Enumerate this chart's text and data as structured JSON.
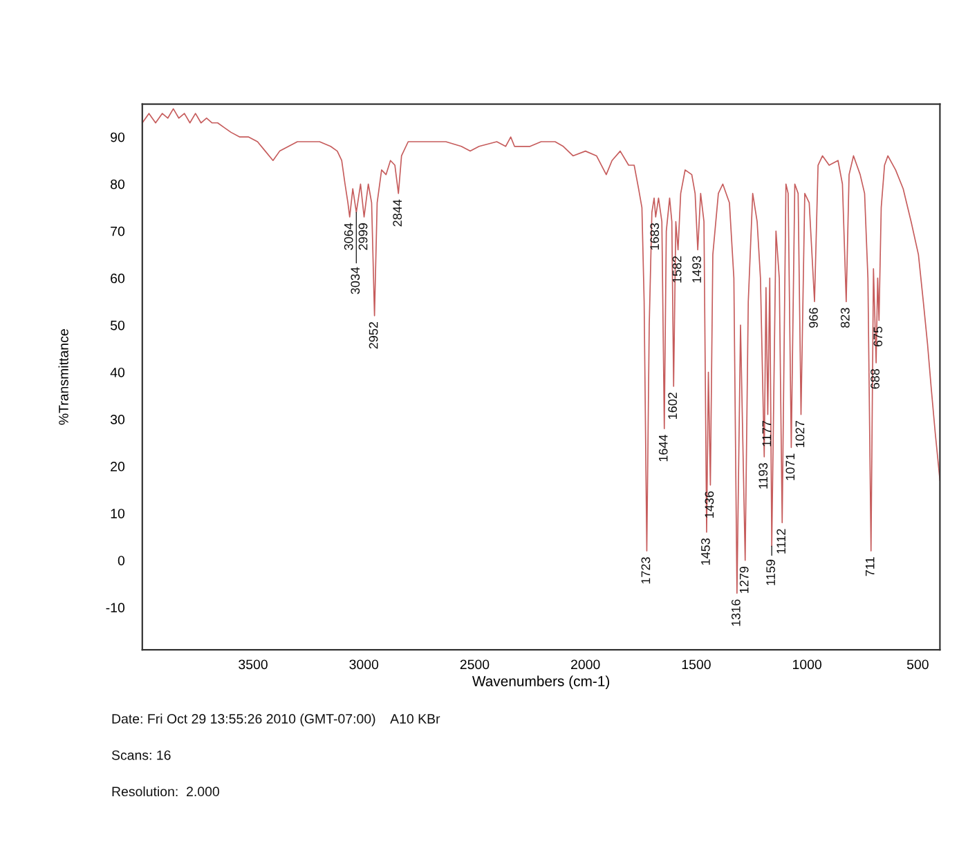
{
  "chart_data": {
    "type": "line",
    "xlabel": "Wavenumbers (cm-1)",
    "ylabel": "%Transmittance",
    "xlim": [
      4000,
      400
    ],
    "xticks": [
      3500,
      3000,
      2500,
      2000,
      1500,
      1000,
      500
    ],
    "ylim": [
      -19,
      97
    ],
    "yticks": [
      -10,
      0,
      10,
      20,
      30,
      40,
      50,
      60,
      70,
      80,
      90
    ],
    "x": [
      4000,
      3970,
      3940,
      3910,
      3885,
      3860,
      3835,
      3810,
      3785,
      3760,
      3735,
      3710,
      3685,
      3660,
      3630,
      3600,
      3560,
      3520,
      3480,
      3445,
      3410,
      3380,
      3340,
      3300,
      3250,
      3200,
      3150,
      3120,
      3100,
      3085,
      3072,
      3064,
      3050,
      3034,
      3015,
      2999,
      2980,
      2965,
      2952,
      2940,
      2920,
      2900,
      2880,
      2860,
      2844,
      2830,
      2800,
      2700,
      2630,
      2560,
      2520,
      2480,
      2400,
      2360,
      2337,
      2320,
      2250,
      2200,
      2137,
      2100,
      2056,
      2000,
      1950,
      1906,
      1880,
      1843,
      1805,
      1780,
      1760,
      1745,
      1735,
      1723,
      1712,
      1700,
      1690,
      1683,
      1670,
      1655,
      1644,
      1635,
      1620,
      1610,
      1602,
      1592,
      1582,
      1570,
      1550,
      1520,
      1505,
      1493,
      1480,
      1465,
      1453,
      1445,
      1436,
      1425,
      1400,
      1380,
      1350,
      1330,
      1316,
      1300,
      1279,
      1265,
      1245,
      1225,
      1210,
      1193,
      1185,
      1177,
      1168,
      1159,
      1140,
      1125,
      1112,
      1095,
      1085,
      1071,
      1055,
      1040,
      1027,
      1010,
      990,
      966,
      950,
      930,
      900,
      860,
      840,
      823,
      810,
      790,
      760,
      740,
      725,
      711,
      700,
      688,
      681,
      675,
      665,
      650,
      635,
      600,
      566,
      530,
      497,
      475,
      456,
      440,
      421,
      400
    ],
    "series": [
      {
        "color": "#c65c5c",
        "values": [
          93,
          95,
          93,
          95,
          94,
          96,
          94,
          95,
          93,
          95,
          93,
          94,
          93,
          93,
          92,
          91,
          90,
          90,
          89,
          87,
          85,
          87,
          88,
          89,
          89,
          89,
          88,
          87,
          85,
          80,
          76,
          73,
          79,
          74,
          80,
          73,
          80,
          76,
          52,
          76,
          83,
          82,
          85,
          84,
          78,
          86,
          89,
          89,
          89,
          88,
          87,
          88,
          89,
          88,
          90,
          88,
          88,
          89,
          89,
          88,
          86,
          87,
          86,
          82,
          85,
          87,
          84,
          84,
          79,
          75,
          55,
          2,
          50,
          74,
          77,
          73,
          77,
          72,
          28,
          70,
          77,
          72,
          37,
          72,
          66,
          78,
          83,
          82,
          78,
          66,
          78,
          72,
          6,
          40,
          16,
          65,
          78,
          80,
          76,
          60,
          -7,
          50,
          0,
          55,
          78,
          72,
          60,
          22,
          58,
          31,
          60,
          3,
          70,
          60,
          8,
          80,
          78,
          24,
          80,
          78,
          31,
          78,
          76,
          55,
          84,
          86,
          84,
          85,
          80,
          55,
          82,
          86,
          82,
          78,
          60,
          2,
          62,
          42,
          60,
          51,
          75,
          84,
          86,
          83,
          79,
          72,
          65,
          55,
          46,
          37,
          27,
          17
        ]
      }
    ],
    "annotations": [
      {
        "text": "3064",
        "x": 3064,
        "y": 73
      },
      {
        "text": "3034",
        "x": 3034,
        "y": 74
      },
      {
        "text": "2999",
        "x": 2999,
        "y": 73
      },
      {
        "text": "2952",
        "x": 2952,
        "y": 52
      },
      {
        "text": "2844",
        "x": 2844,
        "y": 78
      },
      {
        "text": "1723",
        "x": 1723,
        "y": 2
      },
      {
        "text": "1683",
        "x": 1683,
        "y": 73
      },
      {
        "text": "1644",
        "x": 1644,
        "y": 28
      },
      {
        "text": "1602",
        "x": 1602,
        "y": 37
      },
      {
        "text": "1582",
        "x": 1582,
        "y": 66
      },
      {
        "text": "1493",
        "x": 1493,
        "y": 66
      },
      {
        "text": "1453",
        "x": 1453,
        "y": 6
      },
      {
        "text": "1436",
        "x": 1436,
        "y": 16
      },
      {
        "text": "1316",
        "x": 1316,
        "y": -7
      },
      {
        "text": "1279",
        "x": 1279,
        "y": 0
      },
      {
        "text": "1193",
        "x": 1193,
        "y": 22
      },
      {
        "text": "1177",
        "x": 1177,
        "y": 31
      },
      {
        "text": "1159",
        "x": 1159,
        "y": 3
      },
      {
        "text": "1112",
        "x": 1112,
        "y": 8
      },
      {
        "text": "1071",
        "x": 1071,
        "y": 24
      },
      {
        "text": "1027",
        "x": 1027,
        "y": 31
      },
      {
        "text": "966",
        "x": 966,
        "y": 55
      },
      {
        "text": "823",
        "x": 823,
        "y": 55
      },
      {
        "text": "711",
        "x": 711,
        "y": 2
      },
      {
        "text": "688",
        "x": 688,
        "y": 42
      },
      {
        "text": "675",
        "x": 675,
        "y": 51
      },
      "Date: Fri Oct 29 13:55:26 2010 (GMT-07:00)    A10 KBr",
      "Scans: 16",
      "Resolution:  2.000"
    ]
  }
}
